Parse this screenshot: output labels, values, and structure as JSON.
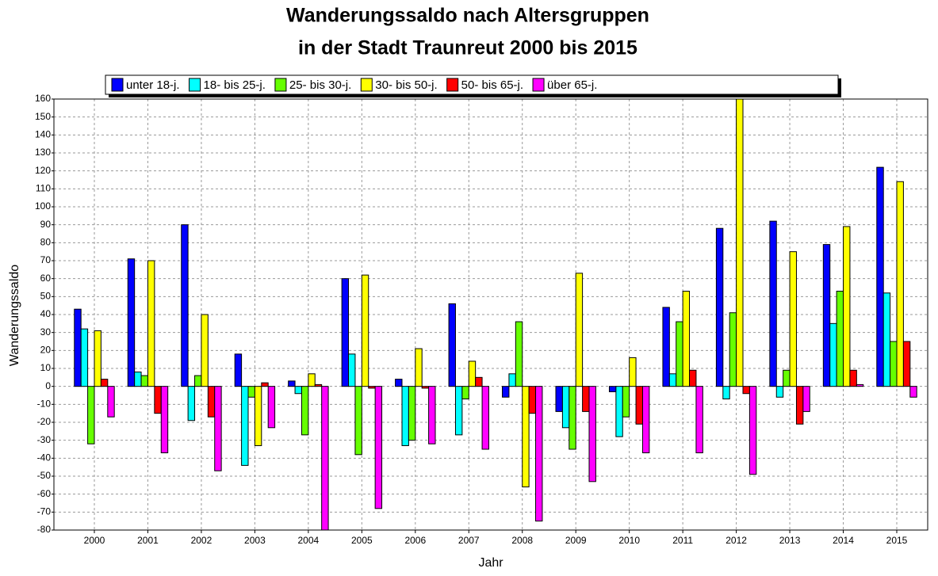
{
  "chart_data": {
    "type": "bar",
    "title": "Wanderungssaldo nach Altersgruppen",
    "subtitle": "in der Stadt Traunreut 2000 bis 2015",
    "xlabel": "Jahr",
    "ylabel": "Wanderungssaldo",
    "categories": [
      "2000",
      "2001",
      "2002",
      "2003",
      "2004",
      "2005",
      "2006",
      "2007",
      "2008",
      "2009",
      "2010",
      "2011",
      "2012",
      "2013",
      "2014",
      "2015"
    ],
    "series": [
      {
        "name": "unter 18-j.",
        "color": "#0000ff",
        "values": [
          43,
          71,
          90,
          18,
          3,
          60,
          4,
          46,
          -6,
          -14,
          -3,
          44,
          88,
          92,
          79,
          122
        ]
      },
      {
        "name": "18- bis 25-j.",
        "color": "#00ffff",
        "values": [
          32,
          8,
          -19,
          -44,
          -4,
          18,
          -33,
          -27,
          7,
          -23,
          -28,
          7,
          -7,
          -6,
          35,
          52
        ]
      },
      {
        "name": "25- bis 30-j.",
        "color": "#66ff00",
        "values": [
          -32,
          6,
          6,
          -6,
          -27,
          -38,
          -30,
          -7,
          36,
          -35,
          -17,
          36,
          41,
          9,
          53,
          25
        ]
      },
      {
        "name": "30- bis 50-j.",
        "color": "#ffff00",
        "values": [
          31,
          70,
          40,
          -33,
          7,
          62,
          21,
          14,
          -56,
          63,
          16,
          53,
          160,
          75,
          89,
          114
        ]
      },
      {
        "name": "50- bis 65-j.",
        "color": "#ff0000",
        "values": [
          4,
          -15,
          -17,
          2,
          1,
          -1,
          -1,
          5,
          -15,
          -14,
          -21,
          9,
          -4,
          -21,
          9,
          25
        ]
      },
      {
        "name": "über 65-j.",
        "color": "#ff00ff",
        "values": [
          -17,
          -37,
          -47,
          -23,
          -80,
          -68,
          -32,
          -35,
          -75,
          -53,
          -37,
          -37,
          -49,
          -14,
          1,
          -6
        ]
      }
    ],
    "ylim": [
      -80,
      160
    ],
    "yticks": [
      -80,
      -70,
      -60,
      -50,
      -40,
      -30,
      -20,
      -10,
      0,
      10,
      20,
      30,
      40,
      50,
      60,
      70,
      80,
      90,
      100,
      110,
      120,
      130,
      140,
      150,
      160
    ],
    "grid": true
  }
}
